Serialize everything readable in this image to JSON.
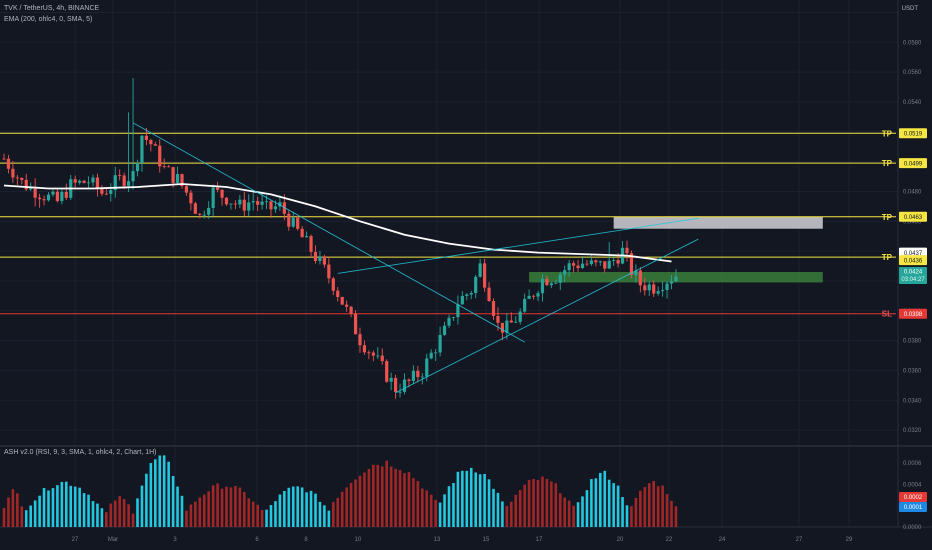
{
  "header": {
    "symbol_line": "TVK / TetherUS, 4h, BINANCE",
    "ema_line": "EMA (200, ohlc4, 0, SMA, 5)",
    "currency": "USDT"
  },
  "oscillator": {
    "legend": "ASH v2.0 (RSI, 9, 3, SMA, 1, ohlc4, 2, Chart, 1H)"
  },
  "colors": {
    "background": "#131722",
    "up": "#26a69a",
    "down": "#ef5350",
    "cyan": "#22c8e0",
    "maroon": "#a32626",
    "ema": "#ffffff",
    "tp_line": "#f5e642",
    "sl_line": "#e53935",
    "zone_green": "#3d8c3d"
  },
  "chart_data": [
    {
      "type": "candlestick",
      "title": "TVK / TetherUS, 4h, BINANCE",
      "x_tick_labels": [
        "27",
        "Mar",
        "3",
        "6",
        "8",
        "10",
        "13",
        "15",
        "17",
        "20",
        "22",
        "24",
        "27",
        "29"
      ],
      "y_ticks": [
        0.032,
        0.034,
        0.036,
        0.038,
        0.04,
        0.042,
        0.044,
        0.046,
        0.048,
        0.05,
        0.052,
        0.054,
        0.056,
        0.058,
        0.06
      ],
      "y_tick_labels": [
        "0.0320",
        "0.0340",
        "0.0360",
        "0.0380",
        "0.0400",
        "0.0420",
        "0.0440",
        "0.0460",
        "0.0480",
        "0.0500",
        "0.0520",
        "0.0540",
        "0.0560",
        "0.0580",
        "0.0600"
      ],
      "ylim": [
        0.031,
        0.0605
      ],
      "grid": true,
      "price_path": [
        [
          0,
          0.0502
        ],
        [
          4,
          0.0486
        ],
        [
          8,
          0.0479
        ],
        [
          12,
          0.0473
        ],
        [
          15,
          0.0484
        ],
        [
          19,
          0.0487
        ],
        [
          22,
          0.0479
        ],
        [
          26,
          0.0488
        ],
        [
          29,
          0.0491
        ],
        [
          31,
          0.0518
        ],
        [
          33,
          0.0512
        ],
        [
          36,
          0.0495
        ],
        [
          39,
          0.0488
        ],
        [
          42,
          0.0475
        ],
        [
          44,
          0.0463
        ],
        [
          47,
          0.048
        ],
        [
          50,
          0.0476
        ],
        [
          53,
          0.047
        ],
        [
          56,
          0.0474
        ],
        [
          59,
          0.0468
        ],
        [
          62,
          0.047
        ],
        [
          65,
          0.0457
        ],
        [
          68,
          0.0445
        ],
        [
          71,
          0.0432
        ],
        [
          74,
          0.0418
        ],
        [
          77,
          0.04
        ],
        [
          80,
          0.0381
        ],
        [
          83,
          0.037
        ],
        [
          86,
          0.0357
        ],
        [
          88,
          0.0348
        ],
        [
          91,
          0.0352
        ],
        [
          94,
          0.036
        ],
        [
          97,
          0.0376
        ],
        [
          100,
          0.0391
        ],
        [
          102,
          0.0406
        ],
        [
          105,
          0.0414
        ],
        [
          107,
          0.043
        ],
        [
          109,
          0.0412
        ],
        [
          111,
          0.039
        ],
        [
          113,
          0.0388
        ],
        [
          116,
          0.0398
        ],
        [
          118,
          0.0408
        ],
        [
          121,
          0.0421
        ],
        [
          124,
          0.0423
        ],
        [
          127,
          0.043
        ],
        [
          130,
          0.0432
        ],
        [
          133,
          0.043
        ],
        [
          136,
          0.0431
        ],
        [
          139,
          0.044
        ],
        [
          141,
          0.0427
        ],
        [
          143,
          0.0418
        ],
        [
          146,
          0.0416
        ],
        [
          149,
          0.0421
        ],
        [
          151,
          0.0424
        ]
      ],
      "ema_path": [
        [
          0,
          0.0484
        ],
        [
          10,
          0.0482
        ],
        [
          20,
          0.0482
        ],
        [
          30,
          0.0483
        ],
        [
          40,
          0.0485
        ],
        [
          50,
          0.0483
        ],
        [
          60,
          0.0478
        ],
        [
          70,
          0.047
        ],
        [
          80,
          0.046
        ],
        [
          90,
          0.0451
        ],
        [
          100,
          0.0445
        ],
        [
          110,
          0.0441
        ],
        [
          120,
          0.0439
        ],
        [
          130,
          0.0438
        ],
        [
          140,
          0.0437
        ],
        [
          150,
          0.0433
        ]
      ],
      "wick_highs": [
        {
          "i": 29,
          "high": 0.0556
        },
        {
          "i": 28,
          "high": 0.0533
        },
        {
          "i": 136,
          "high": 0.0446
        }
      ],
      "wick_lows": [
        {
          "i": 88,
          "high": 0.0341
        }
      ],
      "levels": [
        {
          "label": "TP",
          "value": "0.0519",
          "price": 0.0519,
          "kind": "tp"
        },
        {
          "label": "TP",
          "value": "0.0499",
          "price": 0.0499,
          "kind": "tp"
        },
        {
          "label": "TP",
          "value": "0.0463",
          "price": 0.0463,
          "kind": "tp"
        },
        {
          "label": "",
          "value": "0.0437",
          "price": 0.0437,
          "kind": "ema"
        },
        {
          "label": "TP",
          "value": "0.0436",
          "price": 0.0436,
          "kind": "tp"
        },
        {
          "label": "SL",
          "value": "0.0398",
          "price": 0.0398,
          "kind": "sl"
        }
      ],
      "last_price": {
        "value": "0.0424",
        "countdown": "03:04:27",
        "price": 0.0424
      },
      "zones": [
        {
          "name": "target-zone",
          "from_price": 0.0463,
          "to_price": 0.0455,
          "from_idx": 137,
          "to_idx": 184
        },
        {
          "name": "entry-zone",
          "from_price": 0.0426,
          "to_price": 0.0419,
          "from_idx": 118,
          "to_idx": 184
        }
      ],
      "trendlines": [
        {
          "from": [
            29,
            0.0526
          ],
          "to": [
            117,
            0.0379
          ]
        },
        {
          "from": [
            88,
            0.0345
          ],
          "to": [
            156,
            0.0448
          ]
        },
        {
          "from": [
            75,
            0.0425
          ],
          "to": [
            156,
            0.0462
          ]
        }
      ]
    },
    {
      "type": "bar",
      "title": "ASH v2.0 (RSI, 9, 3, SMA, 1, ohlc4, 2, Chart, 1H)",
      "y_ticks": [
        0.0,
        0.0002,
        0.0004,
        0.0006
      ],
      "y_tick_labels": [
        "0.0000",
        "0.0002",
        "0.0004",
        "0.0006"
      ],
      "ylim": [
        0,
        0.00075
      ],
      "last_values": [
        {
          "value": "0.0002",
          "color": "#e53935"
        },
        {
          "value": "0.0001",
          "color": "#1e88e5"
        }
      ],
      "phases": [
        {
          "from": 0,
          "to": 4,
          "color": "maroon",
          "peak": 0.00035
        },
        {
          "from": 5,
          "to": 22,
          "color": "cyan",
          "peak": 0.00043
        },
        {
          "from": 23,
          "to": 29,
          "color": "maroon",
          "peak": 0.00028
        },
        {
          "from": 30,
          "to": 40,
          "color": "cyan",
          "peak": 0.00066
        },
        {
          "from": 41,
          "to": 58,
          "color": "maroon",
          "peak": 0.0004
        },
        {
          "from": 59,
          "to": 73,
          "color": "cyan",
          "peak": 0.00038
        },
        {
          "from": 74,
          "to": 97,
          "color": "maroon",
          "peak": 0.00062
        },
        {
          "from": 98,
          "to": 112,
          "color": "cyan",
          "peak": 0.00057
        },
        {
          "from": 113,
          "to": 128,
          "color": "maroon",
          "peak": 0.00046
        },
        {
          "from": 129,
          "to": 140,
          "color": "cyan",
          "peak": 0.00051
        },
        {
          "from": 141,
          "to": 151,
          "color": "maroon",
          "peak": 0.00043
        }
      ]
    }
  ]
}
